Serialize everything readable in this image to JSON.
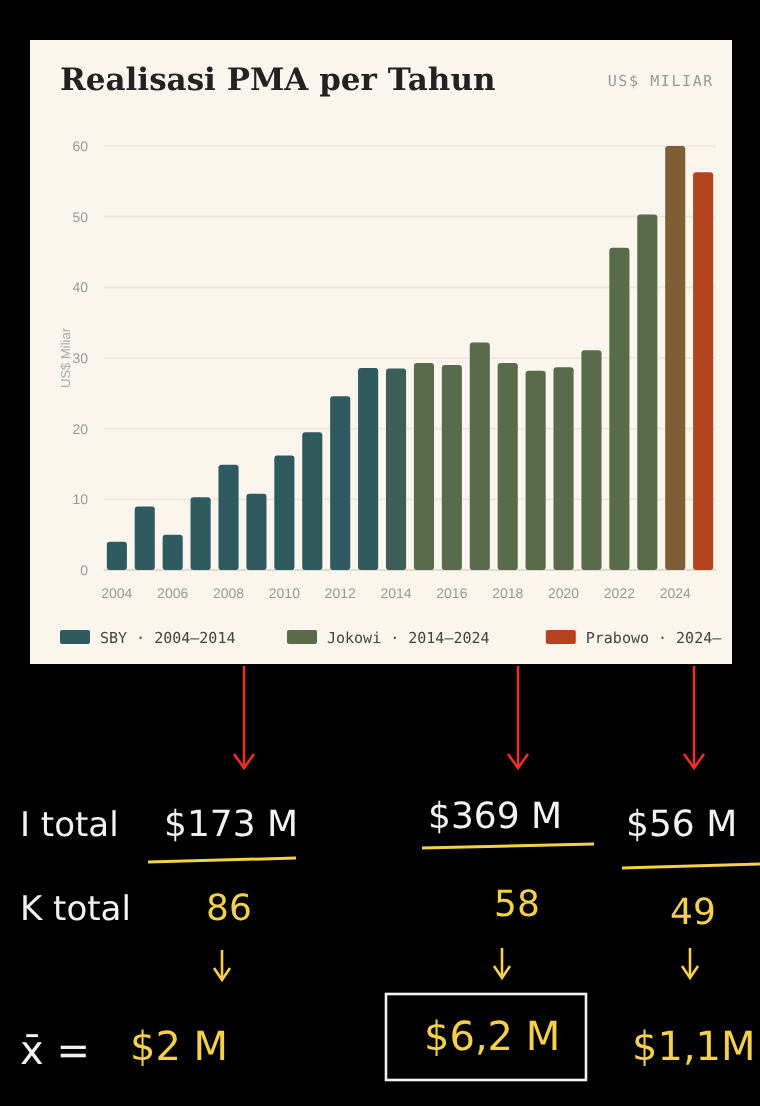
{
  "chart_data": {
    "type": "bar",
    "title": "Realisasi PMA per Tahun",
    "subtitle": "US$ MILIAR",
    "ylabel": "US$ Miliar",
    "categories": [
      "2004",
      null,
      "2006",
      null,
      "2008",
      null,
      "2010",
      null,
      "2012",
      null,
      "2014",
      null,
      "2016",
      null,
      "2018",
      null,
      "2020",
      null,
      "2022",
      null,
      "2024",
      null
    ],
    "series": [
      {
        "name": "SBY · 2004–2014",
        "color": "#2e5a60",
        "colors": [
          "#2e5a60",
          "#2e5a60",
          "#2e5a60",
          "#2e5a60",
          "#2e5a60",
          "#2e5a60",
          "#2e5a60",
          "#2e5a60",
          "#2e5a60",
          "#2e5a60",
          "#3d5e58",
          null,
          null,
          null,
          null,
          null,
          null,
          null,
          null,
          null,
          null,
          null
        ],
        "values": [
          4,
          9,
          5,
          10.3,
          14.9,
          10.8,
          16.2,
          19.5,
          24.6,
          28.6,
          28.5,
          null,
          null,
          null,
          null,
          null,
          null,
          null,
          null,
          null,
          null,
          null
        ]
      },
      {
        "name": "Jokowi · 2014–2024",
        "color": "#5a6b4c",
        "colors": [
          null,
          null,
          null,
          null,
          null,
          null,
          null,
          null,
          null,
          null,
          null,
          "#5a6b4c",
          "#5a6b4c",
          "#5a6b4c",
          "#5a6b4c",
          "#5a6b4c",
          "#5a6b4c",
          "#5a6b4c",
          "#5a6b4c",
          "#5a6b4c",
          "#7f5e36",
          null
        ],
        "values": [
          null,
          null,
          null,
          null,
          null,
          null,
          null,
          null,
          null,
          null,
          null,
          29.3,
          29,
          32.2,
          29.3,
          28.2,
          28.7,
          31.1,
          45.6,
          50.3,
          60,
          null
        ]
      },
      {
        "name": "Prabowo · 2024–",
        "color": "#b5441e",
        "values": [
          null,
          null,
          null,
          null,
          null,
          null,
          null,
          null,
          null,
          null,
          null,
          null,
          null,
          null,
          null,
          null,
          null,
          null,
          null,
          null,
          null,
          56.3
        ]
      }
    ],
    "ylim": [
      0,
      60
    ],
    "yticks": [
      0,
      10,
      20,
      30,
      40,
      50,
      60
    ],
    "grid": "y",
    "legend": "bottom",
    "annotations": [
      "I total",
      "$173 M",
      "$369 M",
      "$56 M",
      "K total",
      "86",
      "58",
      "49",
      "x̄ =",
      "$2 M",
      "$6,2 M",
      "$1,1M"
    ]
  }
}
